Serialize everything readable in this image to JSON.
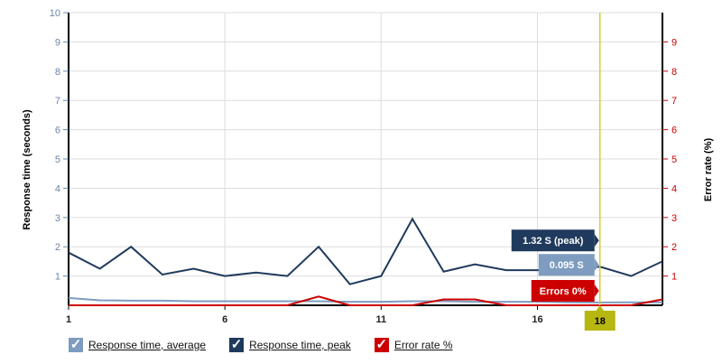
{
  "chart_data": {
    "type": "line",
    "x": [
      1,
      2,
      3,
      4,
      5,
      6,
      7,
      8,
      9,
      10,
      11,
      12,
      13,
      14,
      15,
      16,
      17,
      18,
      19,
      20
    ],
    "x_ticks": [
      1,
      6,
      11,
      16
    ],
    "xlim": [
      1,
      20
    ],
    "ylabel": "Response time (seconds)",
    "ylim": [
      0,
      10
    ],
    "y_ticks": [
      1,
      2,
      3,
      4,
      5,
      6,
      7,
      8,
      9,
      10
    ],
    "y2label": "Error rate (%)",
    "y2lim": [
      0,
      10
    ],
    "y2_ticks": [
      1,
      2,
      3,
      4,
      5,
      6,
      7,
      8,
      9
    ],
    "grid": true,
    "legend_position": "bottom-left",
    "series": [
      {
        "name": "Response time, average",
        "axis": "left",
        "color": "#7d9cc0",
        "values": [
          0.25,
          0.17,
          0.16,
          0.16,
          0.14,
          0.14,
          0.14,
          0.14,
          0.14,
          0.12,
          0.12,
          0.14,
          0.14,
          0.12,
          0.12,
          0.12,
          0.1,
          0.095,
          0.1,
          0.1
        ]
      },
      {
        "name": "Response time, peak",
        "axis": "left",
        "color": "#1f3a5c",
        "values": [
          1.8,
          1.25,
          2.0,
          1.05,
          1.25,
          1.0,
          1.12,
          1.0,
          2.0,
          0.72,
          1.0,
          2.95,
          1.15,
          1.4,
          1.2,
          1.2,
          1.2,
          1.32,
          1.0,
          1.5
        ]
      },
      {
        "name": "Error rate %",
        "axis": "right",
        "color": "#cc0000",
        "values": [
          0,
          0,
          0,
          0,
          0,
          0,
          0,
          0,
          0.3,
          0,
          0,
          0,
          0.2,
          0.2,
          0,
          0,
          0,
          0,
          0,
          0.2
        ]
      }
    ],
    "hover": {
      "x": 18,
      "x_label": "18",
      "peak_label": "1.32 S (peak)",
      "avg_label": "0.095 S",
      "error_label": "Errors 0%"
    }
  },
  "legend": [
    {
      "label": "Response time, average",
      "color": "#7d9cc0"
    },
    {
      "label": "Response time, peak",
      "color": "#1f3a5c"
    },
    {
      "label": "Error rate %",
      "color": "#cc0000"
    }
  ]
}
